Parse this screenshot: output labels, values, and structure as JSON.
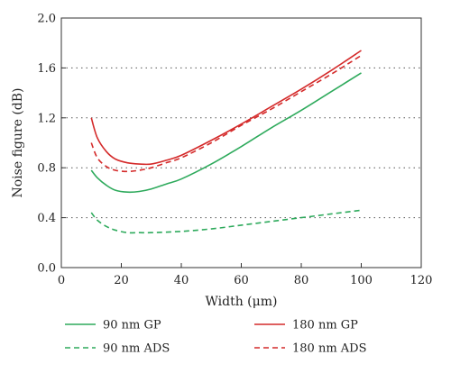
{
  "chart_data": {
    "type": "line",
    "xlabel": "Width (μm)",
    "ylabel": "Noise figure (dB)",
    "xlim": [
      0,
      120
    ],
    "ylim": [
      0,
      2.0
    ],
    "xticks": [
      "0",
      "20",
      "40",
      "60",
      "80",
      "100",
      "120"
    ],
    "yticks": [
      "0.0",
      "0.4",
      "0.8",
      "1.2",
      "1.6",
      "2.0"
    ],
    "grid": "horizontal dotted lines at 0.4, 0.8, 1.2 and 1.6",
    "legend_position": "bottom",
    "series": [
      {
        "name": "90 nm GP",
        "color": "#2eaa5c",
        "dash": "solid",
        "x": [
          10,
          12,
          15,
          18,
          22,
          26,
          30,
          35,
          40,
          50,
          60,
          70,
          80,
          90,
          100
        ],
        "y": [
          0.78,
          0.72,
          0.66,
          0.62,
          0.605,
          0.61,
          0.63,
          0.67,
          0.71,
          0.83,
          0.97,
          1.12,
          1.26,
          1.41,
          1.56
        ]
      },
      {
        "name": "90 nm ADS",
        "color": "#2eaa5c",
        "dash": "dashed",
        "x": [
          10,
          12,
          15,
          18,
          22,
          26,
          30,
          40,
          50,
          60,
          70,
          80,
          90,
          100
        ],
        "y": [
          0.44,
          0.38,
          0.33,
          0.3,
          0.28,
          0.28,
          0.28,
          0.29,
          0.31,
          0.34,
          0.37,
          0.4,
          0.43,
          0.46
        ]
      },
      {
        "name": "180 nm GP",
        "color": "#d42a2a",
        "dash": "solid",
        "x": [
          10,
          12,
          15,
          18,
          22,
          26,
          30,
          35,
          40,
          50,
          60,
          70,
          80,
          90,
          100
        ],
        "y": [
          1.2,
          1.04,
          0.93,
          0.87,
          0.84,
          0.83,
          0.83,
          0.86,
          0.9,
          1.02,
          1.15,
          1.29,
          1.43,
          1.58,
          1.74
        ]
      },
      {
        "name": "180 nm ADS",
        "color": "#d42a2a",
        "dash": "dashed",
        "x": [
          10,
          12,
          15,
          18,
          22,
          26,
          30,
          35,
          40,
          50,
          60,
          70,
          80,
          90,
          100
        ],
        "y": [
          1.0,
          0.88,
          0.81,
          0.78,
          0.77,
          0.78,
          0.8,
          0.84,
          0.88,
          1.0,
          1.14,
          1.27,
          1.41,
          1.55,
          1.7
        ]
      }
    ]
  }
}
